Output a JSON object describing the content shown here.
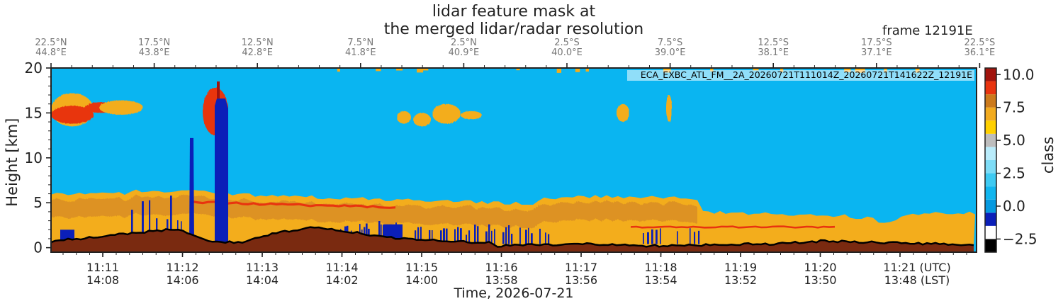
{
  "chart_data": {
    "type": "heatmap",
    "title_line1": "lidar feature mask at",
    "title_line2": "the merged lidar/radar resolution",
    "frame_label": "frame 12191E",
    "product_id": "ECA_EXBC_ATL_FM__2A_20260721T111014Z_20260721T141622Z_12191E",
    "xlabel": "Time, 2026-07-21",
    "ylabel": "Height [km]",
    "ylim": [
      -0.5,
      20
    ],
    "yticks": [
      0,
      5,
      10,
      15,
      20
    ],
    "time_ticks": [
      {
        "utc": "11:11",
        "lst": "14:08"
      },
      {
        "utc": "11:12",
        "lst": "14:06"
      },
      {
        "utc": "11:13",
        "lst": "14:04"
      },
      {
        "utc": "11:14",
        "lst": "14:02"
      },
      {
        "utc": "11:15",
        "lst": "14:00"
      },
      {
        "utc": "11:16",
        "lst": "13:58"
      },
      {
        "utc": "11:17",
        "lst": "13:56"
      },
      {
        "utc": "11:18",
        "lst": "13:54"
      },
      {
        "utc": "11:19",
        "lst": "13:52"
      },
      {
        "utc": "11:20",
        "lst": "13:50"
      },
      {
        "utc": "11:21 (UTC)",
        "lst": "13:48 (LST)"
      }
    ],
    "geo_ticks": [
      {
        "lat": "22.5°N",
        "lon": "44.8°E"
      },
      {
        "lat": "17.5°N",
        "lon": "43.8°E"
      },
      {
        "lat": "12.5°N",
        "lon": "42.8°E"
      },
      {
        "lat": "7.5°N",
        "lon": "41.8°E"
      },
      {
        "lat": "2.5°N",
        "lon": "40.9°E"
      },
      {
        "lat": "2.5°S",
        "lon": "40.0°E"
      },
      {
        "lat": "7.5°S",
        "lon": "39.0°E"
      },
      {
        "lat": "12.5°S",
        "lon": "38.1°E"
      },
      {
        "lat": "17.5°S",
        "lon": "37.1°E"
      },
      {
        "lat": "22.5°S",
        "lon": "36.1°E"
      }
    ],
    "colorbar": {
      "label": "class",
      "range": [
        -3,
        10
      ],
      "ticks": [
        "10.0",
        "7.5",
        "5.0",
        "2.5",
        "0.0",
        "−2.5"
      ],
      "tick_values": [
        10,
        7.5,
        5,
        2.5,
        0,
        -2.5
      ],
      "classes": [
        {
          "value": -3,
          "color": "#000000"
        },
        {
          "value": -2,
          "color": "#ffffff"
        },
        {
          "value": -1,
          "color": "#0b1fb8"
        },
        {
          "value": 0,
          "color": "#069ae0"
        },
        {
          "value": 1,
          "color": "#12b6ef"
        },
        {
          "value": 2,
          "color": "#3fcaf2"
        },
        {
          "value": 3,
          "color": "#7edcf6"
        },
        {
          "value": 4,
          "color": "#b9ecfb"
        },
        {
          "value": 5,
          "color": "#bdbdbd"
        },
        {
          "value": 6,
          "color": "#ffd000"
        },
        {
          "value": 7,
          "color": "#f2ab1f"
        },
        {
          "value": 8,
          "color": "#cc7a1c"
        },
        {
          "value": 9,
          "color": "#e8340f"
        },
        {
          "value": 10,
          "color": "#a1140d"
        }
      ]
    },
    "colors": {
      "clear_sky": "#0ab5f1",
      "aerosol_layer": "#f3ad1c",
      "aerosol_dense": "#d68a25",
      "ice_cloud": "#e8340f",
      "ice_cloud_dark": "#a1140d",
      "attenuated": "#0b1fb8",
      "surface": "#7a2a10",
      "surface_line": "#000000"
    }
  }
}
